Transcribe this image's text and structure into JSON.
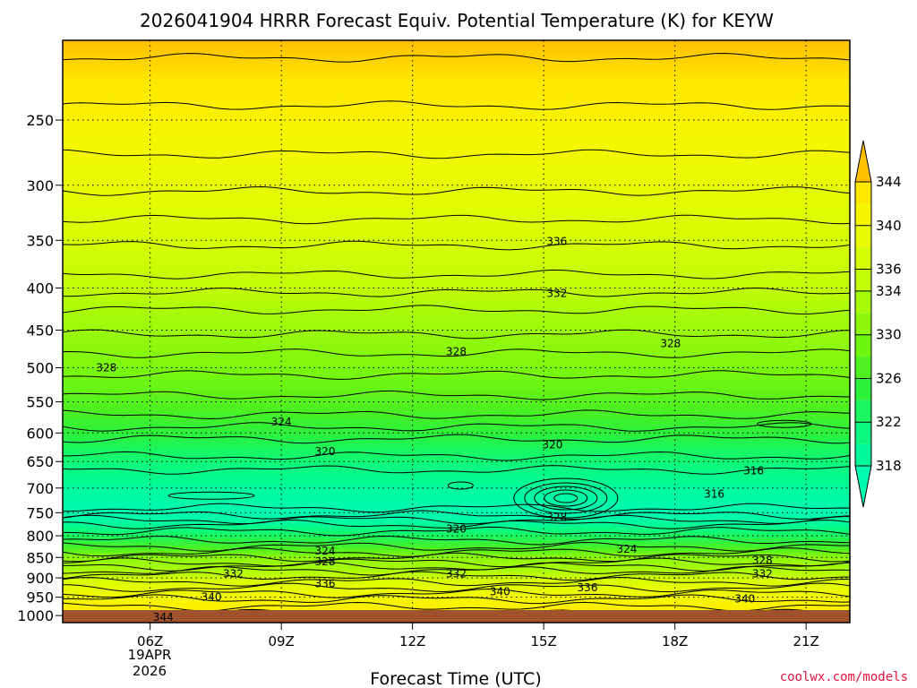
{
  "chart_data": {
    "type": "heatmap",
    "title": "2026041904 HRRR Forecast Equiv. Potential Temperature (K) for KEYW",
    "xlabel": "Forecast Time (UTC)",
    "ylabel": "",
    "x_ticks": [
      "06Z",
      "09Z",
      "12Z",
      "15Z",
      "18Z",
      "21Z"
    ],
    "x_tick_hours": [
      6,
      9,
      12,
      15,
      18,
      21
    ],
    "x_range_hours": [
      4,
      22
    ],
    "date_label": [
      "19APR",
      "2026"
    ],
    "y_ticks": [
      250,
      300,
      350,
      400,
      450,
      500,
      550,
      600,
      650,
      700,
      750,
      800,
      850,
      900,
      950,
      1000
    ],
    "y_range_hpa": [
      200,
      1020
    ],
    "y_scale": "log",
    "colorbar": {
      "levels": [
        318,
        320,
        322,
        324,
        326,
        328,
        330,
        332,
        334,
        336,
        338,
        340,
        342,
        344
      ],
      "labels": [
        318,
        322,
        326,
        330,
        334,
        336,
        340,
        344
      ],
      "colors": [
        "#00fa9b",
        "#0bf87f",
        "#19f660",
        "#2df03a",
        "#4ef020",
        "#6ff512",
        "#8ef80c",
        "#a8fb08",
        "#c2fc06",
        "#d6fd04",
        "#e8fb02",
        "#f7f600",
        "#ffe800",
        "#ffd400"
      ],
      "below_color": "#00fab0",
      "above_color": "#ffc000"
    },
    "contour_labels": [
      {
        "hour": 6.3,
        "hpa": 1005,
        "value": "344"
      },
      {
        "hour": 7.4,
        "hpa": 950,
        "value": "340"
      },
      {
        "hour": 14.0,
        "hpa": 935,
        "value": "340"
      },
      {
        "hour": 19.6,
        "hpa": 955,
        "value": "340"
      },
      {
        "hour": 10.0,
        "hpa": 915,
        "value": "336"
      },
      {
        "hour": 16.0,
        "hpa": 925,
        "value": "336"
      },
      {
        "hour": 7.9,
        "hpa": 890,
        "value": "332"
      },
      {
        "hour": 13.0,
        "hpa": 890,
        "value": "332"
      },
      {
        "hour": 20.0,
        "hpa": 890,
        "value": "332"
      },
      {
        "hour": 10.0,
        "hpa": 860,
        "value": "328"
      },
      {
        "hour": 20.0,
        "hpa": 857,
        "value": "328"
      },
      {
        "hour": 10.0,
        "hpa": 835,
        "value": "324"
      },
      {
        "hour": 16.9,
        "hpa": 830,
        "value": "324"
      },
      {
        "hour": 13.0,
        "hpa": 785,
        "value": "320"
      },
      {
        "hour": 15.3,
        "hpa": 760,
        "value": "328"
      },
      {
        "hour": 18.9,
        "hpa": 712,
        "value": "316"
      },
      {
        "hour": 19.8,
        "hpa": 667,
        "value": "316"
      },
      {
        "hour": 10.0,
        "hpa": 632,
        "value": "320"
      },
      {
        "hour": 15.2,
        "hpa": 620,
        "value": "320"
      },
      {
        "hour": 9.0,
        "hpa": 582,
        "value": "324"
      },
      {
        "hour": 5.0,
        "hpa": 500,
        "value": "328"
      },
      {
        "hour": 13.0,
        "hpa": 478,
        "value": "328"
      },
      {
        "hour": 17.9,
        "hpa": 467,
        "value": "328"
      },
      {
        "hour": 15.3,
        "hpa": 406,
        "value": "332"
      },
      {
        "hour": 15.3,
        "hpa": 351,
        "value": "336"
      }
    ]
  },
  "credit": "coolwx.com/models",
  "colors": {
    "ground": "#a0522d",
    "credit": "#dc143c"
  }
}
